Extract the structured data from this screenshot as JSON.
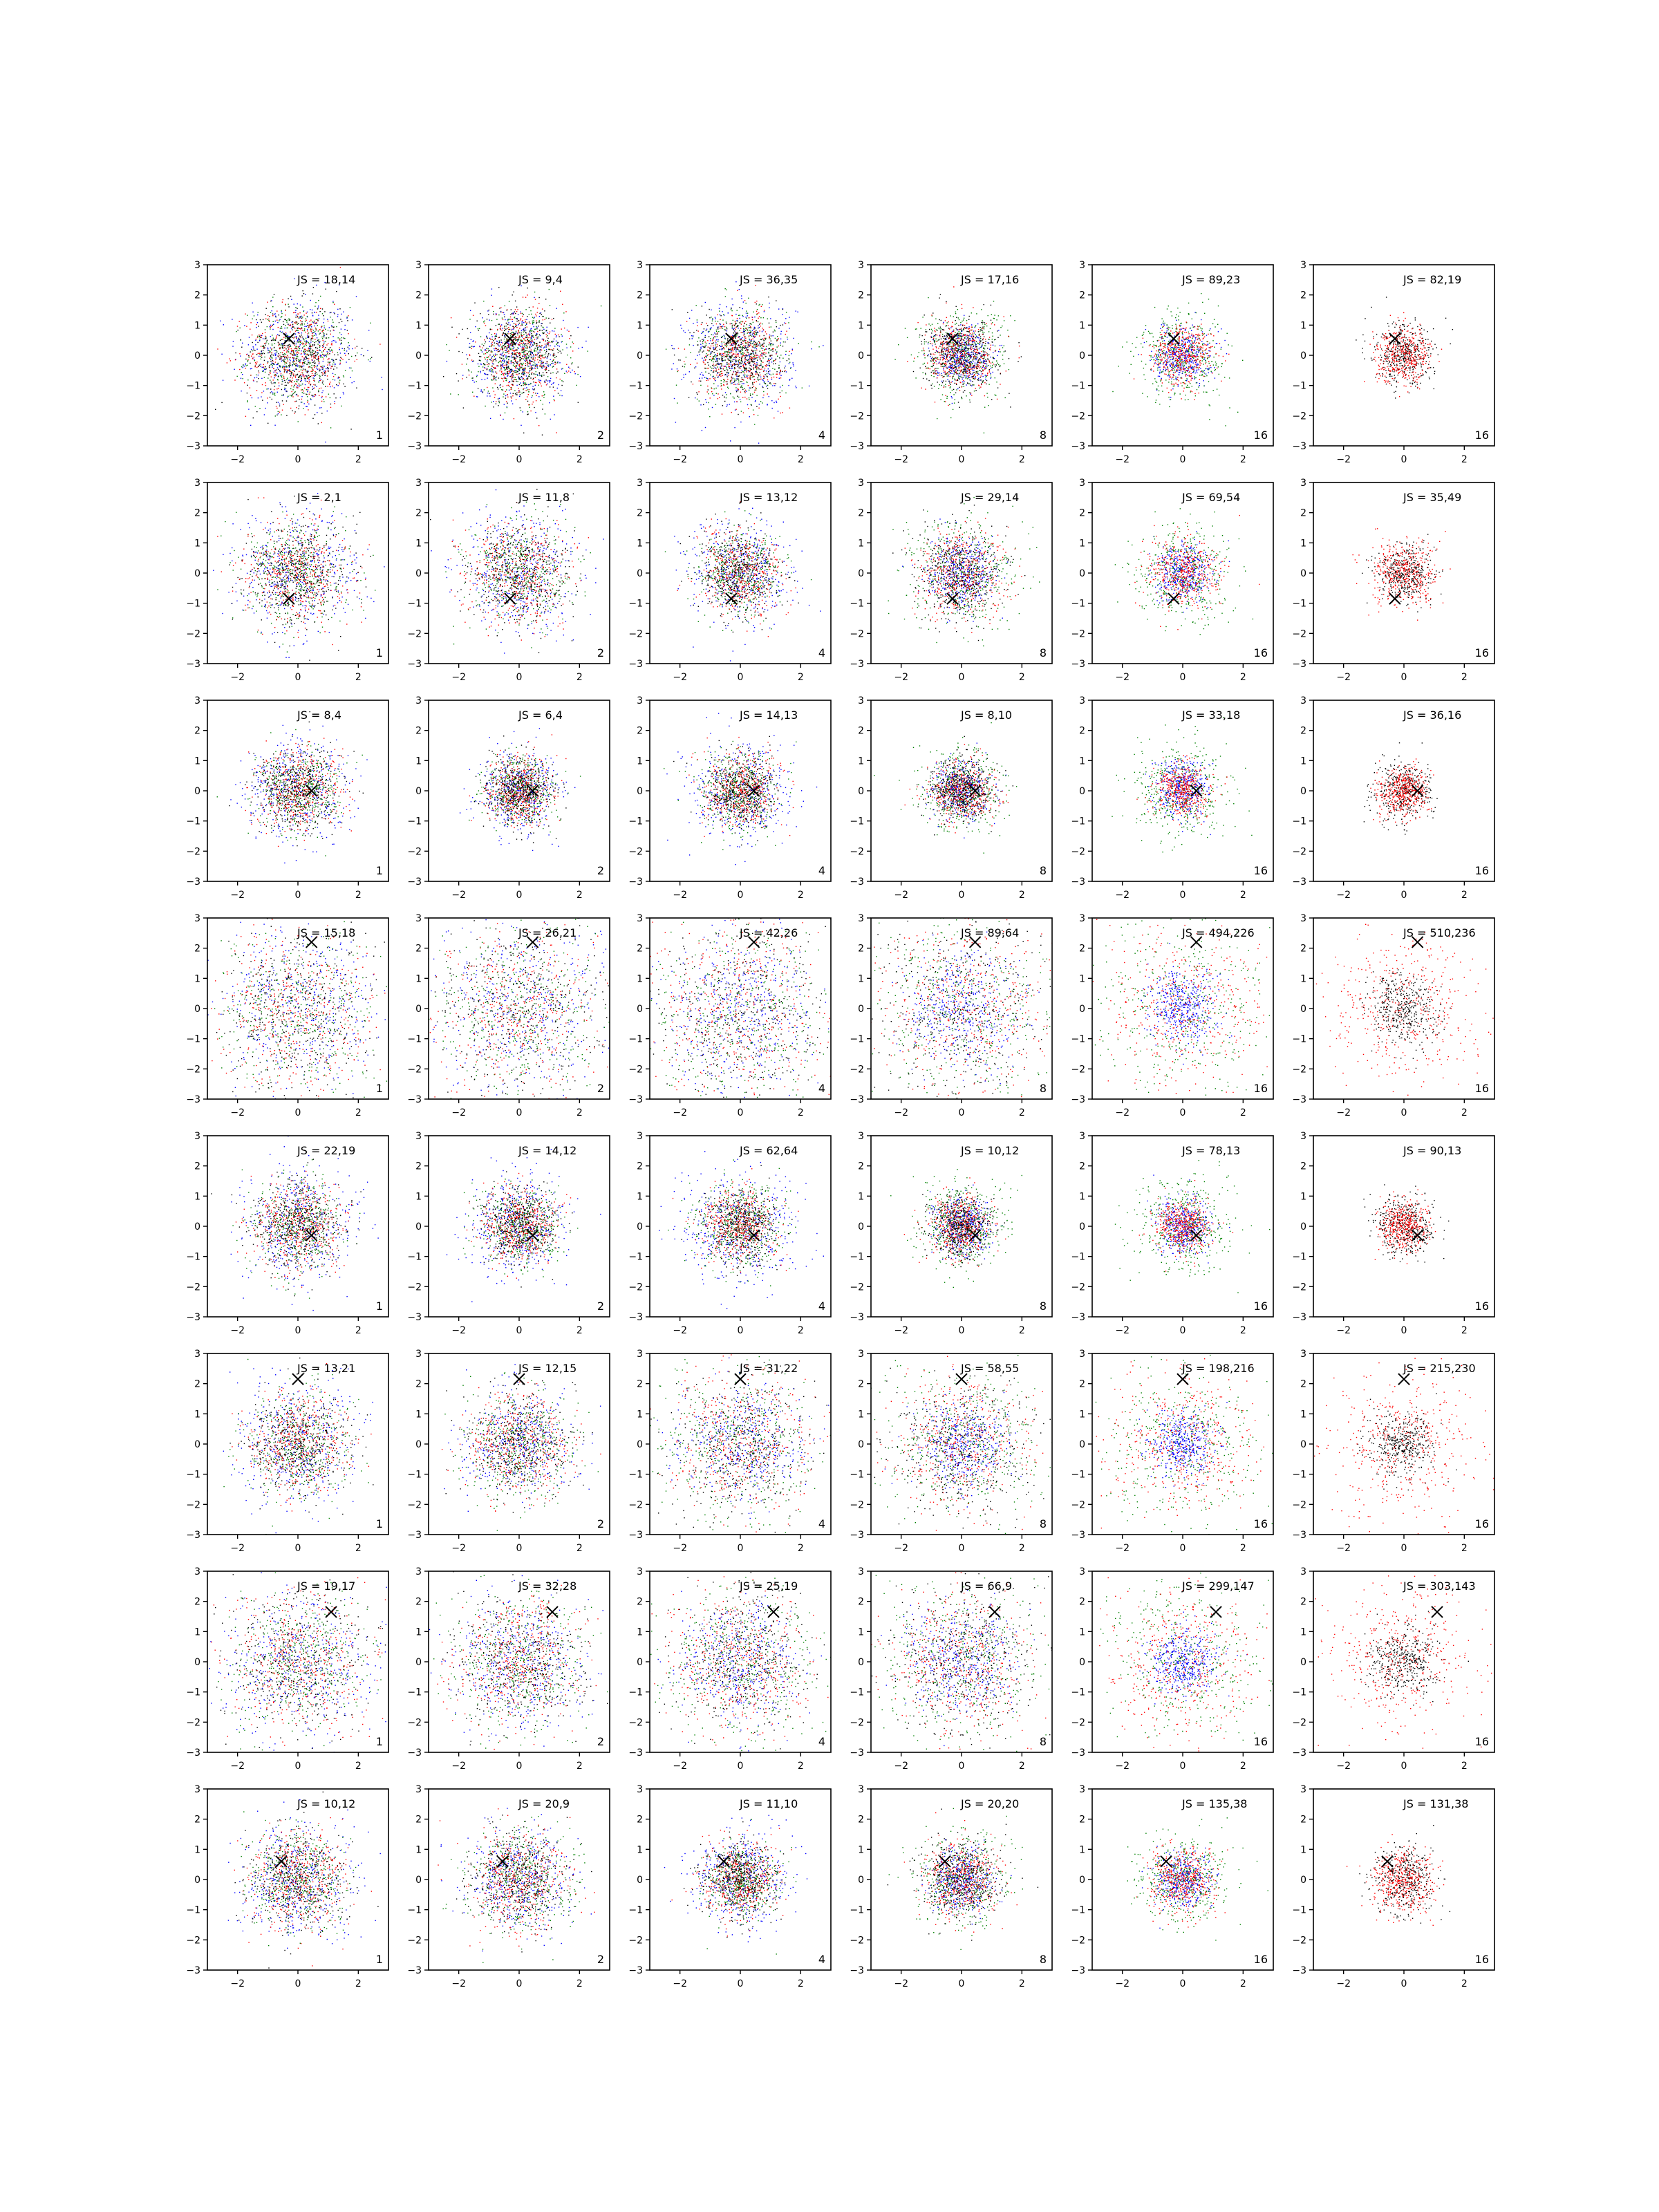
{
  "chart_data": {
    "type": "scatter",
    "layout": {
      "rows": 8,
      "cols": 6
    },
    "axes": {
      "xlim": [
        -3,
        3
      ],
      "ylim": [
        -3,
        3
      ],
      "xticks": [
        -2,
        0,
        2
      ],
      "yticks": [
        -3,
        -2,
        -1,
        0,
        1,
        2,
        3
      ],
      "grid": false
    },
    "colors": {
      "blue": "#0000ff",
      "green": "#008000",
      "red": "#ff0000",
      "black": "#000000",
      "marker": "#000000"
    },
    "column_series": [
      [
        "blue",
        "green",
        "red",
        "black"
      ],
      [
        "blue",
        "green",
        "red",
        "black"
      ],
      [
        "blue",
        "green",
        "red",
        "black"
      ],
      [
        "blue",
        "green",
        "red",
        "black"
      ],
      [
        "blue",
        "green",
        "red"
      ],
      [
        "black",
        "red"
      ]
    ],
    "panels": [
      {
        "row": 0,
        "col": 0,
        "label": "JS = 18,14",
        "corner": "1",
        "marker": [
          -0.3,
          0.55
        ],
        "sd": {
          "blue": 1.0,
          "green": 0.8,
          "red": 0.85,
          "black": 0.85
        }
      },
      {
        "row": 0,
        "col": 1,
        "label": "JS = 9,4",
        "corner": "2",
        "marker": [
          -0.3,
          0.55
        ],
        "sd": {
          "blue": 0.8,
          "green": 0.75,
          "red": 0.75,
          "black": 0.75
        }
      },
      {
        "row": 0,
        "col": 2,
        "label": "JS = 36,35",
        "corner": "4",
        "marker": [
          -0.3,
          0.55
        ],
        "sd": {
          "blue": 0.9,
          "green": 0.8,
          "red": 0.7,
          "black": 0.7
        }
      },
      {
        "row": 0,
        "col": 3,
        "label": "JS = 17,16",
        "corner": "8",
        "marker": [
          -0.3,
          0.55
        ],
        "sd": {
          "blue": 0.45,
          "green": 0.75,
          "red": 0.6,
          "black": 0.6
        }
      },
      {
        "row": 0,
        "col": 4,
        "label": "JS = 89,23",
        "corner": "16",
        "marker": [
          -0.3,
          0.55
        ],
        "sd": {
          "blue": 0.45,
          "green": 0.75,
          "red": 0.5
        }
      },
      {
        "row": 0,
        "col": 5,
        "label": "JS = 82,19",
        "corner": "16",
        "marker": [
          -0.3,
          0.55
        ],
        "sd": {
          "black": 0.5,
          "red": 0.45
        }
      },
      {
        "row": 1,
        "col": 0,
        "label": "JS = 2,1",
        "corner": "1",
        "marker": [
          -0.3,
          -0.85
        ],
        "sd": {
          "blue": 1.0,
          "green": 0.85,
          "red": 0.85,
          "black": 0.85
        }
      },
      {
        "row": 1,
        "col": 1,
        "label": "JS = 11,8",
        "corner": "2",
        "marker": [
          -0.3,
          -0.85
        ],
        "sd": {
          "blue": 1.0,
          "green": 0.85,
          "red": 0.85,
          "black": 0.85
        }
      },
      {
        "row": 1,
        "col": 2,
        "label": "JS = 13,12",
        "corner": "4",
        "marker": [
          -0.3,
          -0.85
        ],
        "sd": {
          "blue": 0.85,
          "green": 0.7,
          "red": 0.7,
          "black": 0.7
        }
      },
      {
        "row": 1,
        "col": 3,
        "label": "JS = 29,14",
        "corner": "8",
        "marker": [
          -0.3,
          -0.85
        ],
        "sd": {
          "blue": 0.55,
          "green": 0.9,
          "red": 0.75,
          "black": 0.75
        }
      },
      {
        "row": 1,
        "col": 4,
        "label": "JS = 69,54",
        "corner": "16",
        "marker": [
          -0.3,
          -0.85
        ],
        "sd": {
          "blue": 0.45,
          "green": 0.8,
          "red": 0.6
        }
      },
      {
        "row": 1,
        "col": 5,
        "label": "JS = 35,49",
        "corner": "16",
        "marker": [
          -0.3,
          -0.85
        ],
        "sd": {
          "black": 0.45,
          "red": 0.55
        }
      },
      {
        "row": 2,
        "col": 0,
        "label": "JS = 8,4",
        "corner": "1",
        "marker": [
          0.45,
          0.0
        ],
        "sd": {
          "blue": 0.85,
          "green": 0.65,
          "red": 0.7,
          "black": 0.7
        }
      },
      {
        "row": 2,
        "col": 1,
        "label": "JS = 6,4",
        "corner": "2",
        "marker": [
          0.45,
          0.0
        ],
        "sd": {
          "blue": 0.65,
          "green": 0.55,
          "red": 0.55,
          "black": 0.55
        }
      },
      {
        "row": 2,
        "col": 2,
        "label": "JS = 14,13",
        "corner": "4",
        "marker": [
          0.45,
          0.0
        ],
        "sd": {
          "blue": 0.8,
          "green": 0.65,
          "red": 0.6,
          "black": 0.6
        }
      },
      {
        "row": 2,
        "col": 3,
        "label": "JS = 8,10",
        "corner": "8",
        "marker": [
          0.45,
          0.0
        ],
        "sd": {
          "blue": 0.45,
          "green": 0.7,
          "red": 0.5,
          "black": 0.5
        }
      },
      {
        "row": 2,
        "col": 4,
        "label": "JS = 33,18",
        "corner": "16",
        "marker": [
          0.45,
          0.0
        ],
        "sd": {
          "blue": 0.45,
          "green": 0.8,
          "red": 0.45
        }
      },
      {
        "row": 2,
        "col": 5,
        "label": "JS = 36,16",
        "corner": "16",
        "marker": [
          0.45,
          0.0
        ],
        "sd": {
          "black": 0.5,
          "red": 0.4
        }
      },
      {
        "row": 3,
        "col": 0,
        "label": "JS = 15,18",
        "corner": "1",
        "marker": [
          0.45,
          2.2
        ],
        "sd": {
          "blue": 1.4,
          "green": 1.4,
          "red": 1.35,
          "black": 1.35
        }
      },
      {
        "row": 3,
        "col": 1,
        "label": "JS = 26,21",
        "corner": "2",
        "marker": [
          0.45,
          2.2
        ],
        "sd": {
          "blue": 1.5,
          "green": 1.45,
          "red": 1.4,
          "black": 1.4
        }
      },
      {
        "row": 3,
        "col": 2,
        "label": "JS = 42,26",
        "corner": "4",
        "marker": [
          0.45,
          2.2
        ],
        "sd": {
          "blue": 1.2,
          "green": 1.6,
          "red": 1.5,
          "black": 1.5
        }
      },
      {
        "row": 3,
        "col": 3,
        "label": "JS = 89,64",
        "corner": "8",
        "marker": [
          0.45,
          2.2
        ],
        "sd": {
          "blue": 0.9,
          "green": 1.6,
          "red": 1.5,
          "black": 1.5
        }
      },
      {
        "row": 3,
        "col": 4,
        "label": "JS = 494,226",
        "corner": "16",
        "marker": [
          0.45,
          2.2
        ],
        "sd": {
          "blue": 0.55,
          "green": 1.5,
          "red": 1.3
        }
      },
      {
        "row": 3,
        "col": 5,
        "label": "JS = 510,236",
        "corner": "16",
        "marker": [
          0.45,
          2.2
        ],
        "sd": {
          "black": 0.6,
          "red": 1.3
        }
      },
      {
        "row": 4,
        "col": 0,
        "label": "JS = 22,19",
        "corner": "1",
        "marker": [
          0.45,
          -0.3
        ],
        "sd": {
          "blue": 0.95,
          "green": 0.75,
          "red": 0.75,
          "black": 0.75
        }
      },
      {
        "row": 4,
        "col": 1,
        "label": "JS = 14,12",
        "corner": "2",
        "marker": [
          0.45,
          -0.3
        ],
        "sd": {
          "blue": 0.8,
          "green": 0.65,
          "red": 0.6,
          "black": 0.6
        }
      },
      {
        "row": 4,
        "col": 2,
        "label": "JS = 62,64",
        "corner": "4",
        "marker": [
          0.45,
          -0.3
        ],
        "sd": {
          "blue": 0.95,
          "green": 0.75,
          "red": 0.6,
          "black": 0.6
        }
      },
      {
        "row": 4,
        "col": 3,
        "label": "JS = 10,12",
        "corner": "8",
        "marker": [
          0.45,
          -0.3
        ],
        "sd": {
          "blue": 0.45,
          "green": 0.7,
          "red": 0.5,
          "black": 0.5
        }
      },
      {
        "row": 4,
        "col": 4,
        "label": "JS = 78,13",
        "corner": "16",
        "marker": [
          0.45,
          -0.3
        ],
        "sd": {
          "blue": 0.45,
          "green": 0.8,
          "red": 0.45
        }
      },
      {
        "row": 4,
        "col": 5,
        "label": "JS = 90,13",
        "corner": "16",
        "marker": [
          0.45,
          -0.3
        ],
        "sd": {
          "black": 0.5,
          "red": 0.4
        }
      },
      {
        "row": 5,
        "col": 0,
        "label": "JS = 13,21",
        "corner": "1",
        "marker": [
          0.0,
          2.15
        ],
        "sd": {
          "blue": 1.0,
          "green": 0.85,
          "red": 0.8,
          "black": 0.8
        }
      },
      {
        "row": 5,
        "col": 1,
        "label": "JS = 12,15",
        "corner": "2",
        "marker": [
          0.0,
          2.15
        ],
        "sd": {
          "blue": 0.9,
          "green": 0.9,
          "red": 0.85,
          "black": 0.85
        }
      },
      {
        "row": 5,
        "col": 2,
        "label": "JS = 31,22",
        "corner": "4",
        "marker": [
          0.0,
          2.15
        ],
        "sd": {
          "blue": 1.0,
          "green": 1.3,
          "red": 1.15,
          "black": 1.15
        }
      },
      {
        "row": 5,
        "col": 3,
        "label": "JS = 58,55",
        "corner": "8",
        "marker": [
          0.0,
          2.15
        ],
        "sd": {
          "blue": 0.7,
          "green": 1.3,
          "red": 1.2,
          "black": 1.2
        }
      },
      {
        "row": 5,
        "col": 4,
        "label": "JS = 198,216",
        "corner": "16",
        "marker": [
          0.0,
          2.15
        ],
        "sd": {
          "blue": 0.55,
          "green": 1.3,
          "red": 1.2
        }
      },
      {
        "row": 5,
        "col": 5,
        "label": "JS = 215,230",
        "corner": "16",
        "marker": [
          0.0,
          2.15
        ],
        "sd": {
          "black": 0.55,
          "red": 1.2
        }
      },
      {
        "row": 6,
        "col": 0,
        "label": "JS = 19,17",
        "corner": "1",
        "marker": [
          1.1,
          1.65
        ],
        "sd": {
          "blue": 1.3,
          "green": 1.2,
          "red": 1.2,
          "black": 1.2
        }
      },
      {
        "row": 6,
        "col": 1,
        "label": "JS = 32,28",
        "corner": "2",
        "marker": [
          1.1,
          1.65
        ],
        "sd": {
          "blue": 1.1,
          "green": 1.15,
          "red": 1.05,
          "black": 1.05
        }
      },
      {
        "row": 6,
        "col": 2,
        "label": "JS = 25,19",
        "corner": "4",
        "marker": [
          1.1,
          1.65
        ],
        "sd": {
          "blue": 1.0,
          "green": 1.3,
          "red": 1.15,
          "black": 1.15
        }
      },
      {
        "row": 6,
        "col": 3,
        "label": "JS = 66,9",
        "corner": "8",
        "marker": [
          1.1,
          1.65
        ],
        "sd": {
          "blue": 0.9,
          "green": 1.35,
          "red": 1.2,
          "black": 1.2
        }
      },
      {
        "row": 6,
        "col": 4,
        "label": "JS = 299,147",
        "corner": "16",
        "marker": [
          1.1,
          1.65
        ],
        "sd": {
          "blue": 0.55,
          "green": 1.4,
          "red": 1.25
        }
      },
      {
        "row": 6,
        "col": 5,
        "label": "JS = 303,143",
        "corner": "16",
        "marker": [
          1.1,
          1.65
        ],
        "sd": {
          "black": 0.55,
          "red": 1.25
        }
      },
      {
        "row": 7,
        "col": 0,
        "label": "JS = 10,12",
        "corner": "1",
        "marker": [
          -0.55,
          0.6
        ],
        "sd": {
          "blue": 0.95,
          "green": 0.8,
          "red": 0.8,
          "black": 0.8
        }
      },
      {
        "row": 7,
        "col": 1,
        "label": "JS = 20,9",
        "corner": "2",
        "marker": [
          -0.55,
          0.6
        ],
        "sd": {
          "blue": 0.85,
          "green": 0.85,
          "red": 0.8,
          "black": 0.8
        }
      },
      {
        "row": 7,
        "col": 2,
        "label": "JS = 11,10",
        "corner": "4",
        "marker": [
          -0.55,
          0.6
        ],
        "sd": {
          "blue": 0.8,
          "green": 0.6,
          "red": 0.6,
          "black": 0.6
        }
      },
      {
        "row": 7,
        "col": 3,
        "label": "JS = 20,20",
        "corner": "8",
        "marker": [
          -0.55,
          0.6
        ],
        "sd": {
          "blue": 0.5,
          "green": 0.75,
          "red": 0.65,
          "black": 0.65
        }
      },
      {
        "row": 7,
        "col": 4,
        "label": "JS = 135,38",
        "corner": "16",
        "marker": [
          -0.55,
          0.6
        ],
        "sd": {
          "blue": 0.45,
          "green": 0.75,
          "red": 0.55
        }
      },
      {
        "row": 7,
        "col": 5,
        "label": "JS = 131,38",
        "corner": "16",
        "marker": [
          -0.55,
          0.6
        ],
        "sd": {
          "black": 0.55,
          "red": 0.5
        }
      }
    ]
  }
}
